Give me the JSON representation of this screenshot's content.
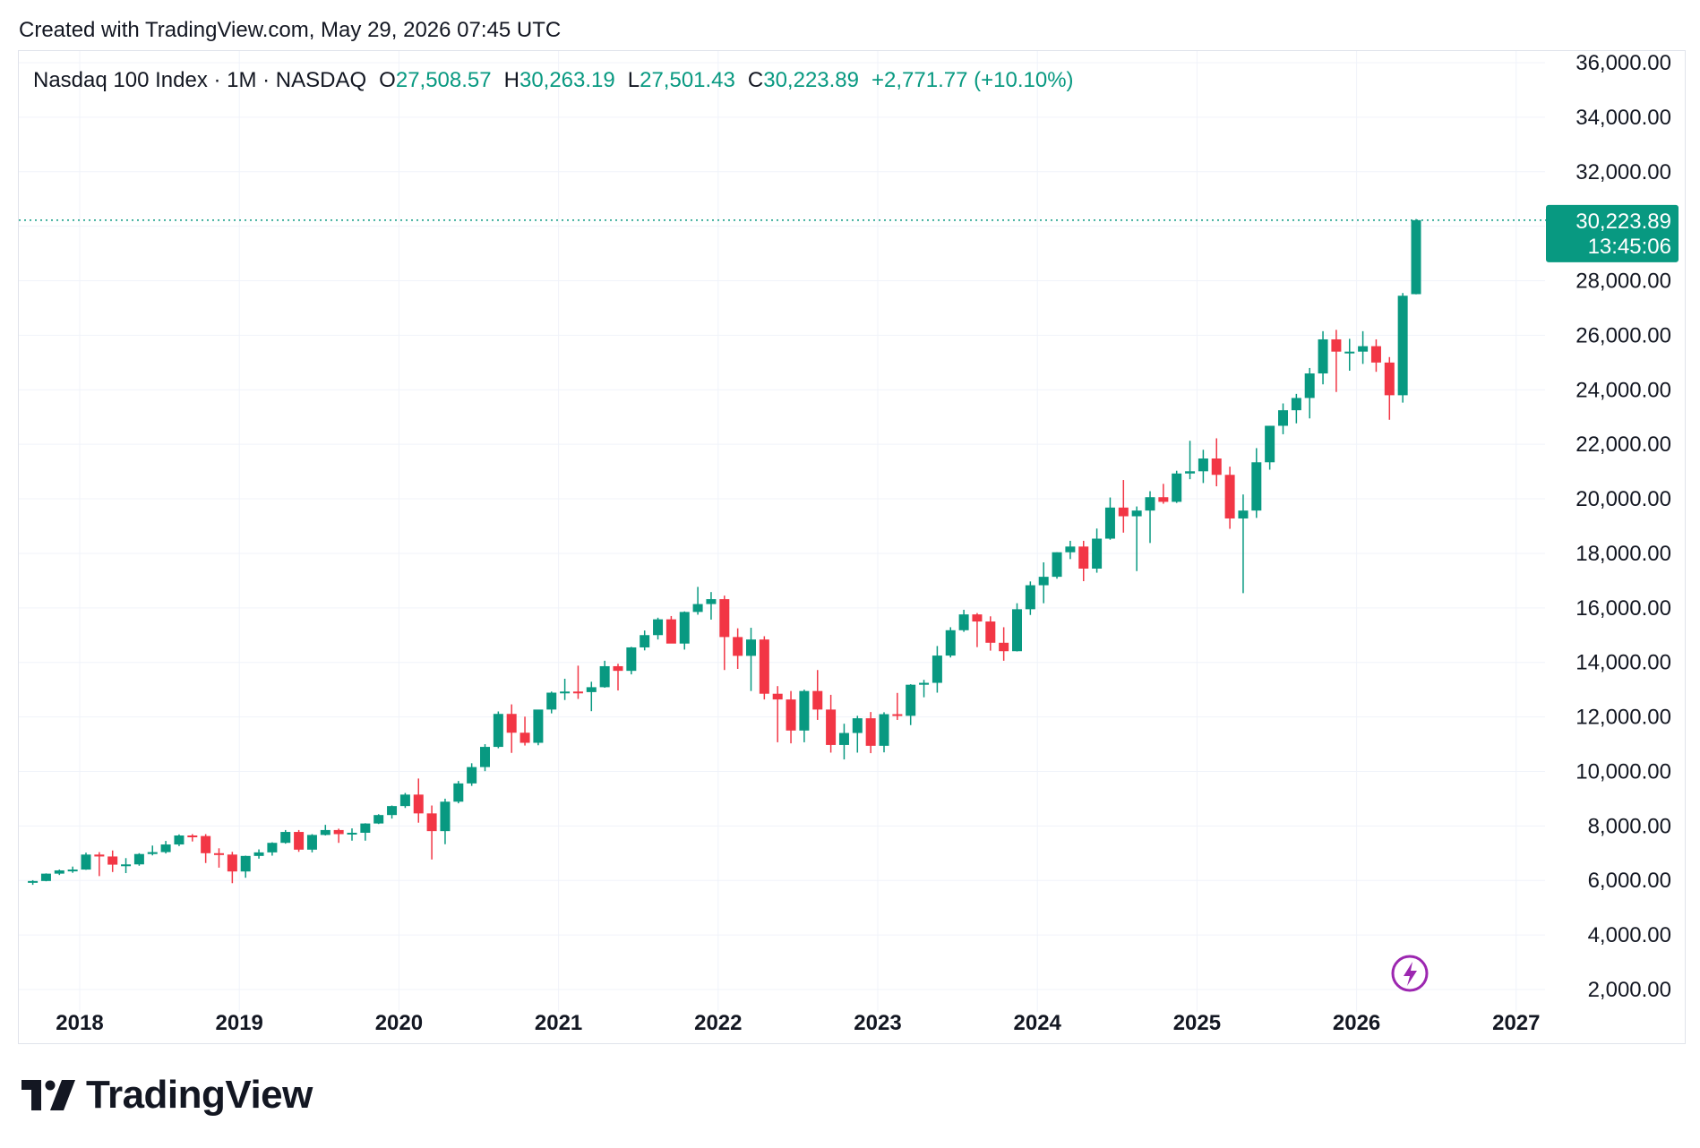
{
  "header": {
    "created": "Created with TradingView.com, May 29, 2026 07:45 UTC"
  },
  "legend": {
    "symbol": "Nasdaq 100 Index · 1M · NASDAQ",
    "o_label": "O",
    "o_value": "27,508.57",
    "h_label": "H",
    "h_value": "30,263.19",
    "l_label": "L",
    "l_value": "27,501.43",
    "c_label": "C",
    "c_value": "30,223.89",
    "change": "+2,771.77 (+10.10%)"
  },
  "price_tag": {
    "price": "30,223.89",
    "countdown": "13:45:06"
  },
  "brand": {
    "name": "TradingView"
  },
  "icons": {
    "lightning": "lightning-icon",
    "logo": "tradingview-logo-icon"
  },
  "colors": {
    "up": "#089981",
    "down": "#f23645",
    "grid": "#f0f3fa",
    "text": "#131722",
    "accent_icon": "#9c27b0"
  },
  "chart_data": {
    "type": "candlestick",
    "interval": "1M",
    "y_range": [
      2000,
      36000
    ],
    "y_ticks": [
      "36,000.00",
      "34,000.00",
      "32,000.00",
      "30,000.00",
      "28,000.00",
      "26,000.00",
      "24,000.00",
      "22,000.00",
      "20,000.00",
      "18,000.00",
      "16,000.00",
      "14,000.00",
      "12,000.00",
      "10,000.00",
      "8,000.00",
      "6,000.00",
      "4,000.00",
      "2,000.00"
    ],
    "x_ticks": [
      "2018",
      "2019",
      "2020",
      "2021",
      "2022",
      "2023",
      "2024",
      "2025",
      "2026",
      "2027"
    ],
    "last_price": 30223.89,
    "candles": [
      {
        "t": "2017-09",
        "o": 5980,
        "h": 6010,
        "l": 5840,
        "c": 5980
      },
      {
        "t": "2017-10",
        "o": 5980,
        "h": 6260,
        "l": 5970,
        "c": 6250
      },
      {
        "t": "2017-11",
        "o": 6250,
        "h": 6400,
        "l": 6200,
        "c": 6370
      },
      {
        "t": "2017-12",
        "o": 6370,
        "h": 6510,
        "l": 6280,
        "c": 6400
      },
      {
        "t": "2018-01",
        "o": 6400,
        "h": 7020,
        "l": 6390,
        "c": 6950
      },
      {
        "t": "2018-02",
        "o": 6950,
        "h": 7040,
        "l": 6160,
        "c": 6880
      },
      {
        "t": "2018-03",
        "o": 6880,
        "h": 7100,
        "l": 6310,
        "c": 6580
      },
      {
        "t": "2018-04",
        "o": 6580,
        "h": 6820,
        "l": 6270,
        "c": 6590
      },
      {
        "t": "2018-05",
        "o": 6590,
        "h": 7000,
        "l": 6540,
        "c": 6970
      },
      {
        "t": "2018-06",
        "o": 6970,
        "h": 7280,
        "l": 6920,
        "c": 7040
      },
      {
        "t": "2018-07",
        "o": 7040,
        "h": 7450,
        "l": 6990,
        "c": 7320
      },
      {
        "t": "2018-08",
        "o": 7320,
        "h": 7690,
        "l": 7260,
        "c": 7650
      },
      {
        "t": "2018-09",
        "o": 7650,
        "h": 7700,
        "l": 7430,
        "c": 7630
      },
      {
        "t": "2018-10",
        "o": 7630,
        "h": 7700,
        "l": 6640,
        "c": 7000
      },
      {
        "t": "2018-11",
        "o": 7000,
        "h": 7180,
        "l": 6470,
        "c": 6950
      },
      {
        "t": "2018-12",
        "o": 6950,
        "h": 7050,
        "l": 5900,
        "c": 6330
      },
      {
        "t": "2019-01",
        "o": 6330,
        "h": 6910,
        "l": 6100,
        "c": 6900
      },
      {
        "t": "2019-02",
        "o": 6900,
        "h": 7140,
        "l": 6800,
        "c": 7030
      },
      {
        "t": "2019-03",
        "o": 7030,
        "h": 7400,
        "l": 6910,
        "c": 7380
      },
      {
        "t": "2019-04",
        "o": 7380,
        "h": 7850,
        "l": 7350,
        "c": 7780
      },
      {
        "t": "2019-05",
        "o": 7780,
        "h": 7850,
        "l": 7050,
        "c": 7130
      },
      {
        "t": "2019-06",
        "o": 7130,
        "h": 7700,
        "l": 7030,
        "c": 7670
      },
      {
        "t": "2019-07",
        "o": 7670,
        "h": 8040,
        "l": 7650,
        "c": 7850
      },
      {
        "t": "2019-08",
        "o": 7850,
        "h": 7900,
        "l": 7380,
        "c": 7700
      },
      {
        "t": "2019-09",
        "o": 7700,
        "h": 7910,
        "l": 7460,
        "c": 7750
      },
      {
        "t": "2019-10",
        "o": 7750,
        "h": 8100,
        "l": 7460,
        "c": 8090
      },
      {
        "t": "2019-11",
        "o": 8090,
        "h": 8430,
        "l": 8070,
        "c": 8400
      },
      {
        "t": "2019-12",
        "o": 8400,
        "h": 8750,
        "l": 8270,
        "c": 8730
      },
      {
        "t": "2020-01",
        "o": 8730,
        "h": 9210,
        "l": 8660,
        "c": 9150
      },
      {
        "t": "2020-02",
        "o": 9150,
        "h": 9740,
        "l": 8120,
        "c": 8460
      },
      {
        "t": "2020-03",
        "o": 8460,
        "h": 8750,
        "l": 6770,
        "c": 7810
      },
      {
        "t": "2020-04",
        "o": 7810,
        "h": 9000,
        "l": 7330,
        "c": 8890
      },
      {
        "t": "2020-05",
        "o": 8890,
        "h": 9650,
        "l": 8830,
        "c": 9560
      },
      {
        "t": "2020-06",
        "o": 9560,
        "h": 10300,
        "l": 9470,
        "c": 10160
      },
      {
        "t": "2020-07",
        "o": 10160,
        "h": 11000,
        "l": 10010,
        "c": 10900
      },
      {
        "t": "2020-08",
        "o": 10900,
        "h": 12200,
        "l": 10850,
        "c": 12110
      },
      {
        "t": "2020-09",
        "o": 12110,
        "h": 12460,
        "l": 10680,
        "c": 11420
      },
      {
        "t": "2020-10",
        "o": 11420,
        "h": 12010,
        "l": 10950,
        "c": 11050
      },
      {
        "t": "2020-11",
        "o": 11050,
        "h": 12260,
        "l": 10960,
        "c": 12270
      },
      {
        "t": "2020-12",
        "o": 12270,
        "h": 12930,
        "l": 12130,
        "c": 12890
      },
      {
        "t": "2021-01",
        "o": 12890,
        "h": 13400,
        "l": 12620,
        "c": 12930
      },
      {
        "t": "2021-02",
        "o": 12930,
        "h": 13880,
        "l": 12660,
        "c": 12910
      },
      {
        "t": "2021-03",
        "o": 12910,
        "h": 13290,
        "l": 12210,
        "c": 13090
      },
      {
        "t": "2021-04",
        "o": 13090,
        "h": 14060,
        "l": 13070,
        "c": 13860
      },
      {
        "t": "2021-05",
        "o": 13860,
        "h": 13950,
        "l": 12970,
        "c": 13690
      },
      {
        "t": "2021-06",
        "o": 13690,
        "h": 14570,
        "l": 13560,
        "c": 14550
      },
      {
        "t": "2021-07",
        "o": 14550,
        "h": 15170,
        "l": 14440,
        "c": 15000
      },
      {
        "t": "2021-08",
        "o": 15000,
        "h": 15640,
        "l": 14840,
        "c": 15580
      },
      {
        "t": "2021-09",
        "o": 15580,
        "h": 15700,
        "l": 14750,
        "c": 14690
      },
      {
        "t": "2021-10",
        "o": 14690,
        "h": 15870,
        "l": 14470,
        "c": 15850
      },
      {
        "t": "2021-11",
        "o": 15850,
        "h": 16770,
        "l": 15750,
        "c": 16140
      },
      {
        "t": "2021-12",
        "o": 16140,
        "h": 16580,
        "l": 15570,
        "c": 16320
      },
      {
        "t": "2022-01",
        "o": 16320,
        "h": 16450,
        "l": 13720,
        "c": 14930
      },
      {
        "t": "2022-02",
        "o": 14930,
        "h": 15250,
        "l": 13760,
        "c": 14240
      },
      {
        "t": "2022-03",
        "o": 14240,
        "h": 15270,
        "l": 12950,
        "c": 14840
      },
      {
        "t": "2022-04",
        "o": 14840,
        "h": 14960,
        "l": 12640,
        "c": 12850
      },
      {
        "t": "2022-05",
        "o": 12850,
        "h": 13130,
        "l": 11070,
        "c": 12640
      },
      {
        "t": "2022-06",
        "o": 12640,
        "h": 12950,
        "l": 11030,
        "c": 11500
      },
      {
        "t": "2022-07",
        "o": 11500,
        "h": 13000,
        "l": 11070,
        "c": 12950
      },
      {
        "t": "2022-08",
        "o": 12950,
        "h": 13720,
        "l": 11890,
        "c": 12270
      },
      {
        "t": "2022-09",
        "o": 12270,
        "h": 12810,
        "l": 10690,
        "c": 10970
      },
      {
        "t": "2022-10",
        "o": 10970,
        "h": 11750,
        "l": 10440,
        "c": 11410
      },
      {
        "t": "2022-11",
        "o": 11410,
        "h": 12040,
        "l": 10690,
        "c": 11950
      },
      {
        "t": "2022-12",
        "o": 11950,
        "h": 12180,
        "l": 10670,
        "c": 10940
      },
      {
        "t": "2023-01",
        "o": 10940,
        "h": 12170,
        "l": 10700,
        "c": 12100
      },
      {
        "t": "2023-02",
        "o": 12100,
        "h": 12880,
        "l": 11890,
        "c": 12040
      },
      {
        "t": "2023-03",
        "o": 12040,
        "h": 13200,
        "l": 11700,
        "c": 13180
      },
      {
        "t": "2023-04",
        "o": 13180,
        "h": 13360,
        "l": 12720,
        "c": 13250
      },
      {
        "t": "2023-05",
        "o": 13250,
        "h": 14600,
        "l": 12890,
        "c": 14250
      },
      {
        "t": "2023-06",
        "o": 14250,
        "h": 15290,
        "l": 14180,
        "c": 15180
      },
      {
        "t": "2023-07",
        "o": 15180,
        "h": 15930,
        "l": 15120,
        "c": 15760
      },
      {
        "t": "2023-08",
        "o": 15760,
        "h": 15810,
        "l": 14560,
        "c": 15500
      },
      {
        "t": "2023-09",
        "o": 15500,
        "h": 15690,
        "l": 14430,
        "c": 14720
      },
      {
        "t": "2023-10",
        "o": 14720,
        "h": 15290,
        "l": 14060,
        "c": 14410
      },
      {
        "t": "2023-11",
        "o": 14410,
        "h": 16170,
        "l": 14400,
        "c": 15950
      },
      {
        "t": "2023-12",
        "o": 15950,
        "h": 16970,
        "l": 15740,
        "c": 16830
      },
      {
        "t": "2024-01",
        "o": 16830,
        "h": 17670,
        "l": 16170,
        "c": 17140
      },
      {
        "t": "2024-02",
        "o": 17140,
        "h": 18040,
        "l": 17070,
        "c": 18040
      },
      {
        "t": "2024-03",
        "o": 18040,
        "h": 18460,
        "l": 17790,
        "c": 18250
      },
      {
        "t": "2024-04",
        "o": 18250,
        "h": 18460,
        "l": 16980,
        "c": 17440
      },
      {
        "t": "2024-05",
        "o": 17440,
        "h": 18910,
        "l": 17290,
        "c": 18540
      },
      {
        "t": "2024-06",
        "o": 18540,
        "h": 20050,
        "l": 18500,
        "c": 19680
      },
      {
        "t": "2024-07",
        "o": 19680,
        "h": 20690,
        "l": 18760,
        "c": 19360
      },
      {
        "t": "2024-08",
        "o": 19360,
        "h": 19720,
        "l": 17350,
        "c": 19570
      },
      {
        "t": "2024-09",
        "o": 19570,
        "h": 20280,
        "l": 18380,
        "c": 20060
      },
      {
        "t": "2024-10",
        "o": 20060,
        "h": 20550,
        "l": 19820,
        "c": 19890
      },
      {
        "t": "2024-11",
        "o": 19890,
        "h": 21030,
        "l": 19850,
        "c": 20930
      },
      {
        "t": "2024-12",
        "o": 20930,
        "h": 22130,
        "l": 20720,
        "c": 21010
      },
      {
        "t": "2025-01",
        "o": 21010,
        "h": 21800,
        "l": 20580,
        "c": 21480
      },
      {
        "t": "2025-02",
        "o": 21480,
        "h": 22220,
        "l": 20460,
        "c": 20880
      },
      {
        "t": "2025-03",
        "o": 20880,
        "h": 21180,
        "l": 18900,
        "c": 19280
      },
      {
        "t": "2025-04",
        "o": 19280,
        "h": 20160,
        "l": 16540,
        "c": 19570
      },
      {
        "t": "2025-05",
        "o": 19570,
        "h": 21860,
        "l": 19300,
        "c": 21340
      },
      {
        "t": "2025-06",
        "o": 21340,
        "h": 22680,
        "l": 21070,
        "c": 22680
      },
      {
        "t": "2025-07",
        "o": 22680,
        "h": 23500,
        "l": 22370,
        "c": 23250
      },
      {
        "t": "2025-08",
        "o": 23250,
        "h": 23850,
        "l": 22770,
        "c": 23700
      },
      {
        "t": "2025-09",
        "o": 23700,
        "h": 24800,
        "l": 22950,
        "c": 24600
      },
      {
        "t": "2025-10",
        "o": 24600,
        "h": 26150,
        "l": 24200,
        "c": 25850
      },
      {
        "t": "2025-11",
        "o": 25850,
        "h": 26200,
        "l": 23920,
        "c": 25400
      },
      {
        "t": "2025-12",
        "o": 25400,
        "h": 25870,
        "l": 24700,
        "c": 25400
      },
      {
        "t": "2026-01",
        "o": 25400,
        "h": 26150,
        "l": 24950,
        "c": 25600
      },
      {
        "t": "2026-02",
        "o": 25600,
        "h": 25850,
        "l": 24660,
        "c": 25000
      },
      {
        "t": "2026-03",
        "o": 25000,
        "h": 25200,
        "l": 22900,
        "c": 23800
      },
      {
        "t": "2026-04",
        "o": 23800,
        "h": 27550,
        "l": 23530,
        "c": 27450
      },
      {
        "t": "2026-05",
        "o": 27508.57,
        "h": 30263.19,
        "l": 27501.43,
        "c": 30223.89
      }
    ]
  }
}
